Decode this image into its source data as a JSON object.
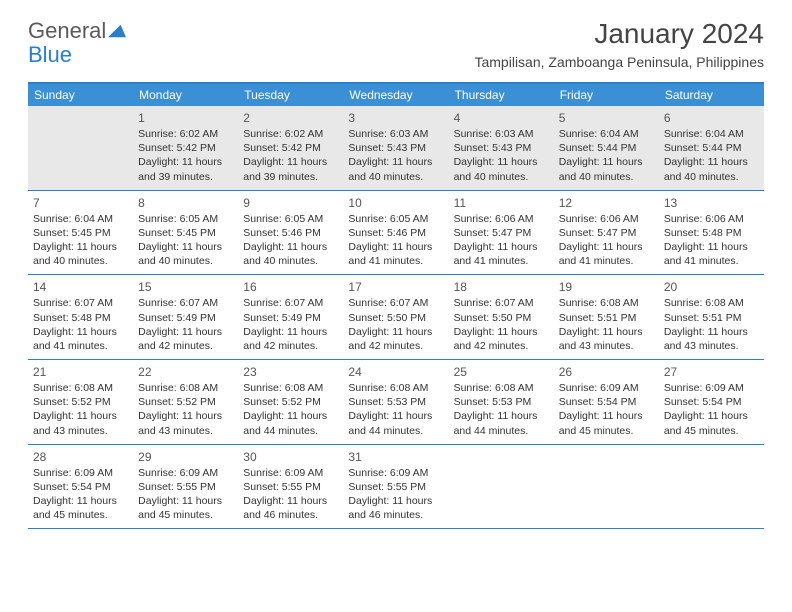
{
  "logo": {
    "text1": "General",
    "text2": "Blue"
  },
  "title": "January 2024",
  "location": "Tampilisan, Zamboanga Peninsula, Philippines",
  "colors": {
    "header_bg": "#3b8fd4",
    "accent": "#2a7fc9",
    "first_row_bg": "#e8e8e8",
    "page_bg": "#ffffff",
    "text": "#333333",
    "logo_gray": "#5a5a5a",
    "logo_blue": "#2a7fc9"
  },
  "days_of_week": [
    "Sunday",
    "Monday",
    "Tuesday",
    "Wednesday",
    "Thursday",
    "Friday",
    "Saturday"
  ],
  "weeks": [
    [
      null,
      {
        "num": "1",
        "sunrise": "6:02 AM",
        "sunset": "5:42 PM",
        "daylight": "11 hours and 39 minutes."
      },
      {
        "num": "2",
        "sunrise": "6:02 AM",
        "sunset": "5:42 PM",
        "daylight": "11 hours and 39 minutes."
      },
      {
        "num": "3",
        "sunrise": "6:03 AM",
        "sunset": "5:43 PM",
        "daylight": "11 hours and 40 minutes."
      },
      {
        "num": "4",
        "sunrise": "6:03 AM",
        "sunset": "5:43 PM",
        "daylight": "11 hours and 40 minutes."
      },
      {
        "num": "5",
        "sunrise": "6:04 AM",
        "sunset": "5:44 PM",
        "daylight": "11 hours and 40 minutes."
      },
      {
        "num": "6",
        "sunrise": "6:04 AM",
        "sunset": "5:44 PM",
        "daylight": "11 hours and 40 minutes."
      }
    ],
    [
      {
        "num": "7",
        "sunrise": "6:04 AM",
        "sunset": "5:45 PM",
        "daylight": "11 hours and 40 minutes."
      },
      {
        "num": "8",
        "sunrise": "6:05 AM",
        "sunset": "5:45 PM",
        "daylight": "11 hours and 40 minutes."
      },
      {
        "num": "9",
        "sunrise": "6:05 AM",
        "sunset": "5:46 PM",
        "daylight": "11 hours and 40 minutes."
      },
      {
        "num": "10",
        "sunrise": "6:05 AM",
        "sunset": "5:46 PM",
        "daylight": "11 hours and 41 minutes."
      },
      {
        "num": "11",
        "sunrise": "6:06 AM",
        "sunset": "5:47 PM",
        "daylight": "11 hours and 41 minutes."
      },
      {
        "num": "12",
        "sunrise": "6:06 AM",
        "sunset": "5:47 PM",
        "daylight": "11 hours and 41 minutes."
      },
      {
        "num": "13",
        "sunrise": "6:06 AM",
        "sunset": "5:48 PM",
        "daylight": "11 hours and 41 minutes."
      }
    ],
    [
      {
        "num": "14",
        "sunrise": "6:07 AM",
        "sunset": "5:48 PM",
        "daylight": "11 hours and 41 minutes."
      },
      {
        "num": "15",
        "sunrise": "6:07 AM",
        "sunset": "5:49 PM",
        "daylight": "11 hours and 42 minutes."
      },
      {
        "num": "16",
        "sunrise": "6:07 AM",
        "sunset": "5:49 PM",
        "daylight": "11 hours and 42 minutes."
      },
      {
        "num": "17",
        "sunrise": "6:07 AM",
        "sunset": "5:50 PM",
        "daylight": "11 hours and 42 minutes."
      },
      {
        "num": "18",
        "sunrise": "6:07 AM",
        "sunset": "5:50 PM",
        "daylight": "11 hours and 42 minutes."
      },
      {
        "num": "19",
        "sunrise": "6:08 AM",
        "sunset": "5:51 PM",
        "daylight": "11 hours and 43 minutes."
      },
      {
        "num": "20",
        "sunrise": "6:08 AM",
        "sunset": "5:51 PM",
        "daylight": "11 hours and 43 minutes."
      }
    ],
    [
      {
        "num": "21",
        "sunrise": "6:08 AM",
        "sunset": "5:52 PM",
        "daylight": "11 hours and 43 minutes."
      },
      {
        "num": "22",
        "sunrise": "6:08 AM",
        "sunset": "5:52 PM",
        "daylight": "11 hours and 43 minutes."
      },
      {
        "num": "23",
        "sunrise": "6:08 AM",
        "sunset": "5:52 PM",
        "daylight": "11 hours and 44 minutes."
      },
      {
        "num": "24",
        "sunrise": "6:08 AM",
        "sunset": "5:53 PM",
        "daylight": "11 hours and 44 minutes."
      },
      {
        "num": "25",
        "sunrise": "6:08 AM",
        "sunset": "5:53 PM",
        "daylight": "11 hours and 44 minutes."
      },
      {
        "num": "26",
        "sunrise": "6:09 AM",
        "sunset": "5:54 PM",
        "daylight": "11 hours and 45 minutes."
      },
      {
        "num": "27",
        "sunrise": "6:09 AM",
        "sunset": "5:54 PM",
        "daylight": "11 hours and 45 minutes."
      }
    ],
    [
      {
        "num": "28",
        "sunrise": "6:09 AM",
        "sunset": "5:54 PM",
        "daylight": "11 hours and 45 minutes."
      },
      {
        "num": "29",
        "sunrise": "6:09 AM",
        "sunset": "5:55 PM",
        "daylight": "11 hours and 45 minutes."
      },
      {
        "num": "30",
        "sunrise": "6:09 AM",
        "sunset": "5:55 PM",
        "daylight": "11 hours and 46 minutes."
      },
      {
        "num": "31",
        "sunrise": "6:09 AM",
        "sunset": "5:55 PM",
        "daylight": "11 hours and 46 minutes."
      },
      null,
      null,
      null
    ]
  ],
  "labels": {
    "sunrise": "Sunrise:",
    "sunset": "Sunset:",
    "daylight": "Daylight:"
  }
}
